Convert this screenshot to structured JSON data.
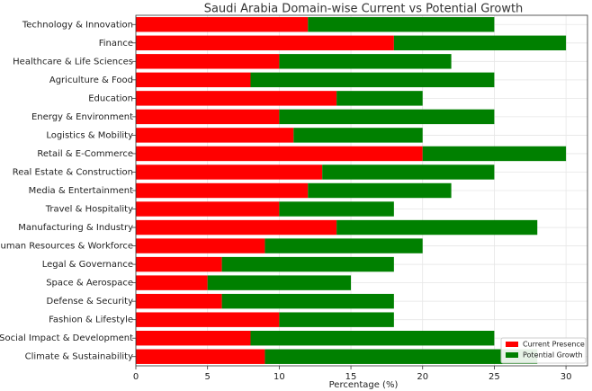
{
  "chart_data": {
    "type": "stacked_barh",
    "title": "Saudi Arabia Domain-wise Current vs Potential Growth",
    "x_label": "Percentage (%)",
    "categories": [
      "Technology & Innovation",
      "Finance",
      "Healthcare & Life Sciences",
      "Agriculture & Food",
      "Education",
      "Energy & Environment",
      "Logistics & Mobility",
      "Retail & E-Commerce",
      "Real Estate & Construction",
      "Media & Entertainment",
      "Travel & Hospitality",
      "Manufacturing & Industry",
      "Human Resources & Workforce",
      "Legal & Governance",
      "Space & Aerospace",
      "Defense & Security",
      "Fashion & Lifestyle",
      "Social Impact & Development",
      "Climate & Sustainability"
    ],
    "series": [
      {
        "name": "Current Presence",
        "color": "#ff0000",
        "values": [
          12,
          18,
          10,
          8,
          14,
          10,
          11,
          20,
          13,
          12,
          10,
          14,
          9,
          6,
          5,
          6,
          10,
          8,
          9
        ]
      },
      {
        "name": "Potential Growth",
        "color": "#008000",
        "values": [
          13,
          12,
          12,
          17,
          6,
          15,
          9,
          10,
          12,
          10,
          8,
          14,
          11,
          12,
          10,
          12,
          8,
          17,
          19
        ]
      }
    ],
    "xlim": [
      0,
      31.5
    ],
    "xticks": [
      0,
      5,
      10,
      15,
      20,
      25,
      30
    ],
    "grid": true,
    "legend": "lower right"
  }
}
